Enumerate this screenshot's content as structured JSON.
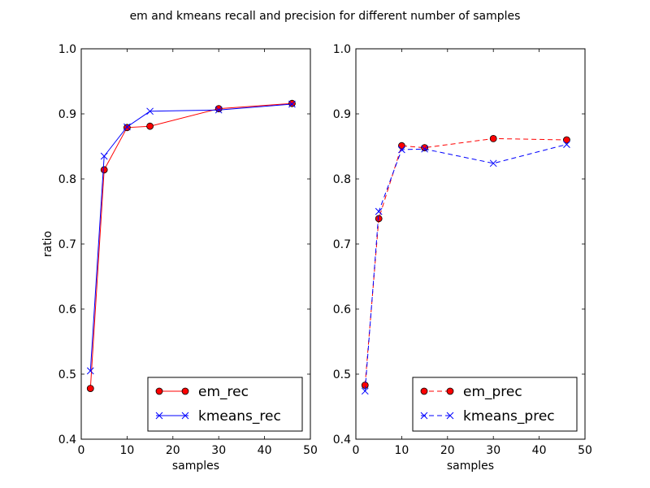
{
  "figure": {
    "suptitle": "em and kmeans recall and precision for different number of samples"
  },
  "chart_data": [
    {
      "type": "line",
      "xlabel": "samples",
      "ylabel": "ratio",
      "xlim": [
        0,
        50
      ],
      "ylim": [
        0.4,
        1.0
      ],
      "xticks": [
        "0",
        "10",
        "20",
        "30",
        "40",
        "50"
      ],
      "yticks": [
        "0.4",
        "0.5",
        "0.6",
        "0.7",
        "0.8",
        "0.9",
        "1.0"
      ],
      "grid": false,
      "legend_position": "lower-right",
      "series": [
        {
          "name": "em_rec",
          "color": "#ff0000",
          "marker": "circle",
          "dashed": false,
          "x": [
            2,
            5,
            10,
            15,
            30,
            46
          ],
          "y": [
            0.478,
            0.814,
            0.879,
            0.881,
            0.908,
            0.916
          ]
        },
        {
          "name": "kmeans_rec",
          "color": "#0000ff",
          "marker": "x",
          "dashed": false,
          "x": [
            2,
            5,
            10,
            15,
            30,
            46
          ],
          "y": [
            0.505,
            0.835,
            0.88,
            0.904,
            0.906,
            0.915
          ]
        }
      ]
    },
    {
      "type": "line",
      "xlabel": "samples",
      "ylabel": "",
      "xlim": [
        0,
        50
      ],
      "ylim": [
        0.4,
        1.0
      ],
      "xticks": [
        "0",
        "10",
        "20",
        "30",
        "40",
        "50"
      ],
      "yticks": [
        "0.4",
        "0.5",
        "0.6",
        "0.7",
        "0.8",
        "0.9",
        "1.0"
      ],
      "grid": false,
      "legend_position": "lower-right",
      "series": [
        {
          "name": "em_prec",
          "color": "#ff0000",
          "marker": "circle",
          "dashed": true,
          "x": [
            2,
            5,
            10,
            15,
            30,
            46
          ],
          "y": [
            0.483,
            0.739,
            0.851,
            0.848,
            0.862,
            0.86
          ]
        },
        {
          "name": "kmeans_prec",
          "color": "#0000ff",
          "marker": "x",
          "dashed": true,
          "x": [
            2,
            5,
            10,
            15,
            30,
            46
          ],
          "y": [
            0.474,
            0.75,
            0.845,
            0.846,
            0.824,
            0.853
          ]
        }
      ]
    }
  ]
}
